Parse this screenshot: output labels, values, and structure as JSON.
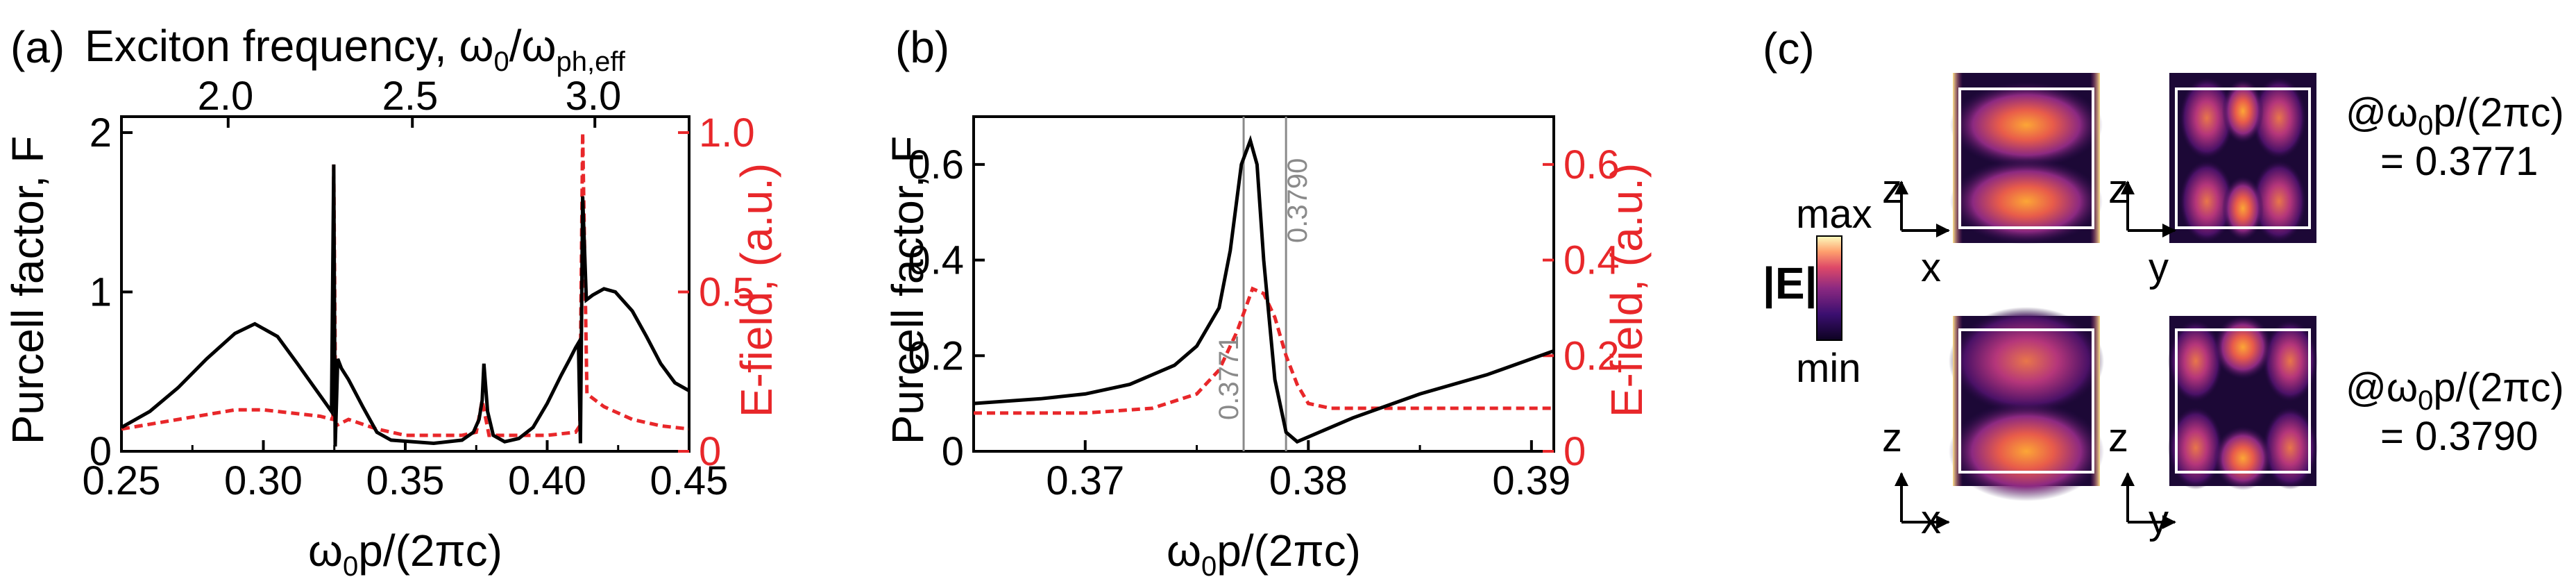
{
  "panel_a": {
    "label": "(a)",
    "top_axis_label": "Exciton frequency, ω0/ωph,eff",
    "top_axis_parts": {
      "pre": "Exciton frequency, ω",
      "sub0": "0",
      "mid": "/ω",
      "sub1": "ph,eff"
    },
    "top_ticks": [
      "2.0",
      "2.5",
      "3.0"
    ],
    "left_axis_label": "Purcell factor, F",
    "right_axis_label": "E-field, (a.u.)",
    "bottom_axis_parts": {
      "pre": "ω",
      "sub": "0",
      "post": "p/(2πc)"
    }
  },
  "panel_b": {
    "label": "(b)",
    "left_axis_label": "Purcell factor, F",
    "right_axis_label": "E-field, (a.u.)",
    "bottom_axis_parts": {
      "pre": "ω",
      "sub": "0",
      "post": "p/(2πc)"
    },
    "vline_labels": [
      "0.3771",
      "0.3790"
    ]
  },
  "panel_c": {
    "label": "(c)",
    "colorbar_label": "|E|",
    "colorbar_max": "max",
    "colorbar_min": "min",
    "axis_x": "x",
    "axis_y": "y",
    "axis_z": "z",
    "freq_label_1": {
      "pre": "@ω",
      "sub": "0",
      "post": "p/(2πc)",
      "value": "= 0.3771"
    },
    "freq_label_2": {
      "pre": "@ω",
      "sub": "0",
      "post": "p/(2πc)",
      "value": "= 0.3790"
    }
  },
  "colors": {
    "black_curve": "#000000",
    "red_curve": "#e8272a",
    "vline": "#8a8a8a"
  },
  "chart_data": [
    {
      "id": "a",
      "type": "line",
      "xlabel": "ω0p/(2πc)",
      "ylabel": "Purcell factor, F",
      "y2label": "E-field, (a.u.)",
      "xlim": [
        0.25,
        0.45
      ],
      "ylim": [
        0,
        2.1
      ],
      "y2lim": [
        0,
        1.05
      ],
      "x_ticks": [
        "0.25",
        "0.30",
        "0.35",
        "0.40",
        "0.45"
      ],
      "y_ticks": [
        "0",
        "1",
        "2"
      ],
      "y2_ticks": [
        "0",
        "0.5",
        "1.0"
      ],
      "top_axis": {
        "label": "Exciton frequency, ω0/ωph,eff",
        "ticks": [
          {
            "label": "2.0",
            "x": 0.2876
          },
          {
            "label": "2.5",
            "x": 0.3525
          },
          {
            "label": "3.0",
            "x": 0.4168
          }
        ]
      },
      "series": [
        {
          "name": "Purcell factor, F",
          "axis": "left",
          "style": "solid",
          "color": "#000000",
          "x": [
            0.25,
            0.26,
            0.27,
            0.28,
            0.29,
            0.297,
            0.305,
            0.312,
            0.318,
            0.322,
            0.324,
            0.3248,
            0.3253,
            0.3262,
            0.3275,
            0.33,
            0.335,
            0.34,
            0.345,
            0.36,
            0.37,
            0.374,
            0.376,
            0.3771,
            0.3777,
            0.379,
            0.381,
            0.385,
            0.39,
            0.395,
            0.4,
            0.405,
            0.408,
            0.41,
            0.411,
            0.4117,
            0.4125,
            0.4138,
            0.416,
            0.42,
            0.424,
            0.43,
            0.435,
            0.44,
            0.445,
            0.45
          ],
          "y": [
            0.15,
            0.25,
            0.4,
            0.58,
            0.74,
            0.8,
            0.72,
            0.55,
            0.4,
            0.3,
            0.25,
            1.8,
            0.03,
            0.58,
            0.52,
            0.45,
            0.28,
            0.12,
            0.07,
            0.05,
            0.07,
            0.12,
            0.2,
            0.32,
            0.55,
            0.25,
            0.1,
            0.06,
            0.08,
            0.15,
            0.3,
            0.48,
            0.58,
            0.65,
            0.68,
            0.05,
            1.6,
            0.95,
            0.98,
            1.02,
            1.0,
            0.88,
            0.72,
            0.55,
            0.43,
            0.38
          ]
        },
        {
          "name": "E-field",
          "axis": "right",
          "style": "dashed",
          "color": "#e8272a",
          "x": [
            0.25,
            0.27,
            0.29,
            0.3,
            0.31,
            0.32,
            0.3245,
            0.3248,
            0.3255,
            0.33,
            0.34,
            0.35,
            0.36,
            0.37,
            0.375,
            0.3771,
            0.3795,
            0.385,
            0.39,
            0.4,
            0.41,
            0.4115,
            0.4125,
            0.414,
            0.42,
            0.43,
            0.44,
            0.45
          ],
          "y": [
            0.07,
            0.1,
            0.13,
            0.13,
            0.12,
            0.11,
            0.1,
            0.9,
            0.08,
            0.1,
            0.07,
            0.05,
            0.05,
            0.05,
            0.06,
            0.16,
            0.05,
            0.05,
            0.05,
            0.05,
            0.06,
            0.08,
            1.0,
            0.18,
            0.14,
            0.1,
            0.08,
            0.07
          ]
        }
      ]
    },
    {
      "id": "b",
      "type": "line",
      "xlabel": "ω0p/(2πc)",
      "ylabel": "Purcell factor, F",
      "y2label": "E-field, (a.u.)",
      "xlim": [
        0.365,
        0.391
      ],
      "ylim": [
        0,
        0.7
      ],
      "y2lim": [
        0,
        0.7
      ],
      "x_ticks": [
        "0.37",
        "0.38",
        "0.39"
      ],
      "y_ticks": [
        "0",
        "0.2",
        "0.4",
        "0.6"
      ],
      "y2_ticks": [
        "0",
        "0.2",
        "0.4",
        "0.6"
      ],
      "vlines": [
        0.3771,
        0.379
      ],
      "series": [
        {
          "name": "Purcell factor, F",
          "axis": "left",
          "style": "solid",
          "color": "#000000",
          "x": [
            0.365,
            0.368,
            0.37,
            0.372,
            0.374,
            0.375,
            0.376,
            0.3765,
            0.377,
            0.3774,
            0.3777,
            0.378,
            0.3785,
            0.379,
            0.3795,
            0.38,
            0.382,
            0.385,
            0.388,
            0.391
          ],
          "y": [
            0.1,
            0.11,
            0.12,
            0.14,
            0.18,
            0.22,
            0.3,
            0.42,
            0.6,
            0.65,
            0.6,
            0.4,
            0.15,
            0.04,
            0.02,
            0.03,
            0.07,
            0.12,
            0.16,
            0.21
          ]
        },
        {
          "name": "E-field",
          "axis": "right",
          "style": "dashed",
          "color": "#e8272a",
          "x": [
            0.365,
            0.37,
            0.373,
            0.375,
            0.376,
            0.3768,
            0.3775,
            0.378,
            0.3785,
            0.379,
            0.3795,
            0.38,
            0.381,
            0.383,
            0.385,
            0.391
          ],
          "y": [
            0.08,
            0.08,
            0.09,
            0.12,
            0.17,
            0.25,
            0.34,
            0.33,
            0.28,
            0.2,
            0.14,
            0.1,
            0.09,
            0.09,
            0.09,
            0.09
          ]
        }
      ]
    }
  ]
}
